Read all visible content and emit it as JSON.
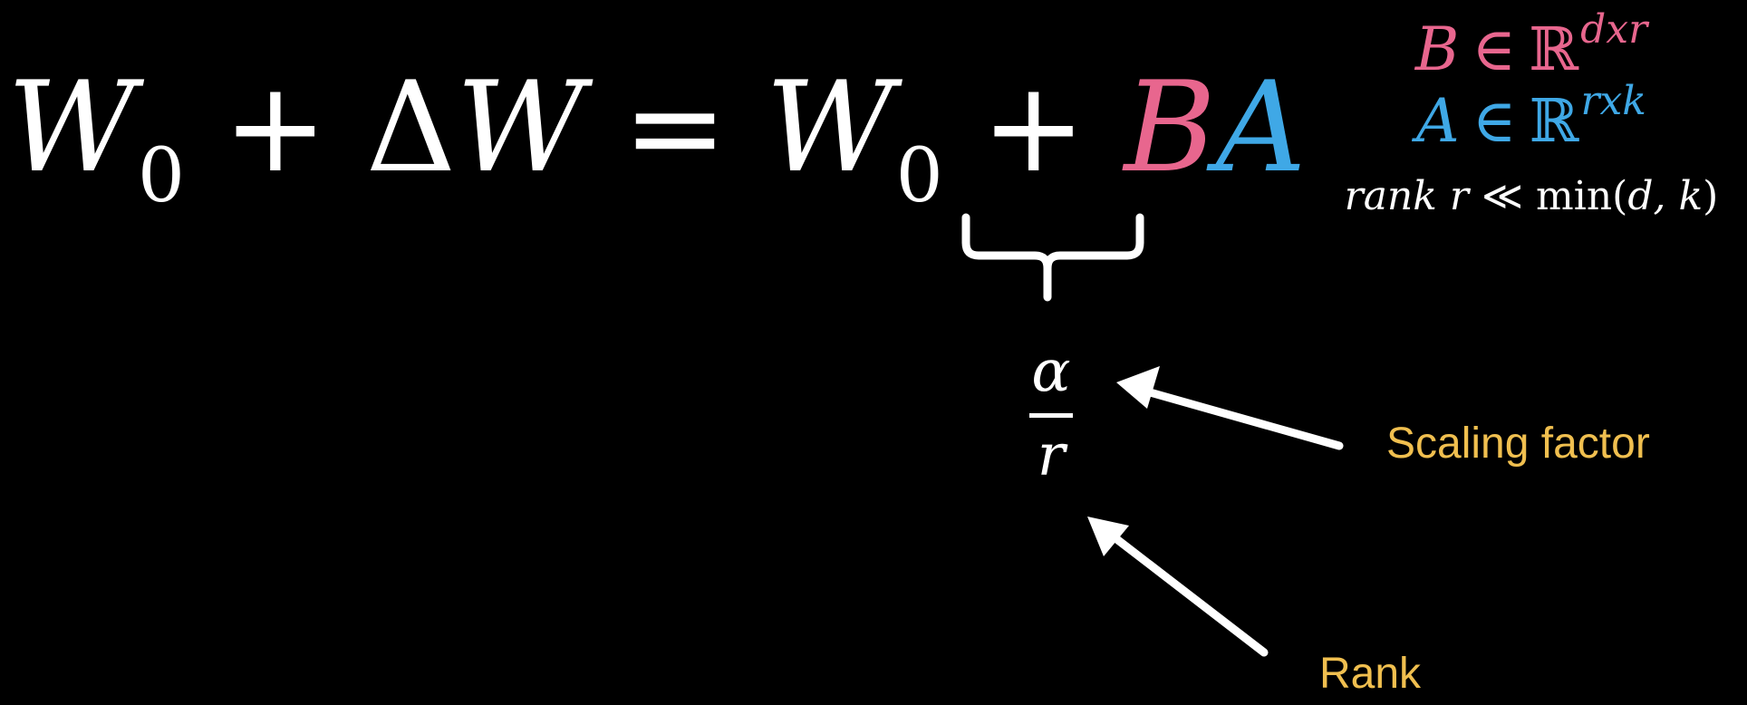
{
  "equation": {
    "w": "W",
    "sub0": "0",
    "plus": "+",
    "delta": "Δ",
    "w2": "W",
    "equals": "=",
    "w3": "W",
    "sub0b": "0",
    "plus2": "+",
    "b": "B",
    "a": "A"
  },
  "definitions": {
    "b_symbol": "B",
    "a_symbol": "A",
    "element_of": "∈",
    "reals": "ℝ",
    "b_dims": "dxr",
    "a_dims": "rxk",
    "rank_word": "rank",
    "rank_var": "r",
    "much_less": "≪",
    "min_expr": "min(",
    "min_args": "d, k",
    "close_paren": ")"
  },
  "fraction": {
    "numerator": "α",
    "denominator": "r"
  },
  "labels": {
    "scaling": "Scaling factor",
    "rank": "Rank"
  },
  "colors": {
    "b": "#e8668e",
    "a": "#3fa8e6",
    "label": "#f0bf4f",
    "background": "#000000",
    "foreground": "#ffffff"
  }
}
